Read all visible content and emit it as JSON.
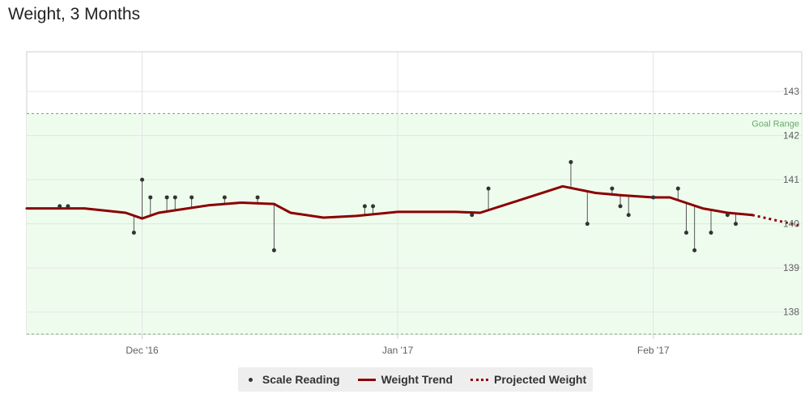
{
  "title": "Weight, 3 Months",
  "chart_data": {
    "type": "line",
    "title": "Weight, 3 Months",
    "xlabel": "",
    "ylabel": "",
    "x_range": [
      "2016-11-17",
      "2017-02-19"
    ],
    "ylim": [
      137.5,
      143.9
    ],
    "yticks": [
      138,
      139,
      140,
      141,
      142,
      143
    ],
    "xticks": [
      {
        "date": "2016-12-01",
        "label": "Dec '16"
      },
      {
        "date": "2017-01-01",
        "label": "Jan '17"
      },
      {
        "date": "2017-02-01",
        "label": "Feb '17"
      }
    ],
    "goal_range": {
      "label": "Goal Range",
      "low": 137.5,
      "high": 142.5
    },
    "grid": true,
    "legend_position": "bottom-center",
    "colors": {
      "trend": "#8b0000",
      "scale": "#333333",
      "goal_fill": "#eefcee",
      "goal_line": "#6aa86a"
    },
    "series": [
      {
        "name": "Scale Reading",
        "style": "dots",
        "points": [
          {
            "x": "2016-11-21",
            "y": 140.4
          },
          {
            "x": "2016-11-22",
            "y": 140.4
          },
          {
            "x": "2016-11-30",
            "y": 139.8
          },
          {
            "x": "2016-12-01",
            "y": 141.0
          },
          {
            "x": "2016-12-02",
            "y": 140.6
          },
          {
            "x": "2016-12-04",
            "y": 140.6
          },
          {
            "x": "2016-12-05",
            "y": 140.6
          },
          {
            "x": "2016-12-07",
            "y": 140.6
          },
          {
            "x": "2016-12-11",
            "y": 140.6
          },
          {
            "x": "2016-12-15",
            "y": 140.6
          },
          {
            "x": "2016-12-17",
            "y": 139.4
          },
          {
            "x": "2016-12-28",
            "y": 140.4
          },
          {
            "x": "2016-12-29",
            "y": 140.4
          },
          {
            "x": "2017-01-10",
            "y": 140.2
          },
          {
            "x": "2017-01-12",
            "y": 140.8
          },
          {
            "x": "2017-01-22",
            "y": 141.4
          },
          {
            "x": "2017-01-24",
            "y": 140.0
          },
          {
            "x": "2017-01-27",
            "y": 140.8
          },
          {
            "x": "2017-01-28",
            "y": 140.4
          },
          {
            "x": "2017-01-29",
            "y": 140.2
          },
          {
            "x": "2017-02-01",
            "y": 140.6
          },
          {
            "x": "2017-02-04",
            "y": 140.8
          },
          {
            "x": "2017-02-05",
            "y": 139.8
          },
          {
            "x": "2017-02-06",
            "y": 139.4
          },
          {
            "x": "2017-02-08",
            "y": 139.8
          },
          {
            "x": "2017-02-10",
            "y": 140.2
          },
          {
            "x": "2017-02-11",
            "y": 140.0
          }
        ]
      },
      {
        "name": "Weight Trend",
        "style": "solid",
        "points": [
          {
            "x": "2016-11-17",
            "y": 140.35
          },
          {
            "x": "2016-11-24",
            "y": 140.35
          },
          {
            "x": "2016-11-29",
            "y": 140.25
          },
          {
            "x": "2016-12-01",
            "y": 140.12
          },
          {
            "x": "2016-12-03",
            "y": 140.25
          },
          {
            "x": "2016-12-09",
            "y": 140.42
          },
          {
            "x": "2016-12-13",
            "y": 140.48
          },
          {
            "x": "2016-12-17",
            "y": 140.45
          },
          {
            "x": "2016-12-19",
            "y": 140.25
          },
          {
            "x": "2016-12-23",
            "y": 140.14
          },
          {
            "x": "2016-12-27",
            "y": 140.18
          },
          {
            "x": "2017-01-01",
            "y": 140.27
          },
          {
            "x": "2017-01-08",
            "y": 140.27
          },
          {
            "x": "2017-01-11",
            "y": 140.25
          },
          {
            "x": "2017-01-16",
            "y": 140.55
          },
          {
            "x": "2017-01-21",
            "y": 140.85
          },
          {
            "x": "2017-01-25",
            "y": 140.7
          },
          {
            "x": "2017-01-28",
            "y": 140.65
          },
          {
            "x": "2017-02-01",
            "y": 140.6
          },
          {
            "x": "2017-02-03",
            "y": 140.6
          },
          {
            "x": "2017-02-07",
            "y": 140.35
          },
          {
            "x": "2017-02-10",
            "y": 140.25
          },
          {
            "x": "2017-02-13",
            "y": 140.2
          }
        ]
      },
      {
        "name": "Projected Weight",
        "style": "dotted",
        "points": [
          {
            "x": "2017-02-13",
            "y": 140.2
          },
          {
            "x": "2017-02-19",
            "y": 139.95
          }
        ]
      }
    ]
  },
  "legend": {
    "scale": "Scale Reading",
    "trend": "Weight Trend",
    "projected": "Projected Weight"
  }
}
